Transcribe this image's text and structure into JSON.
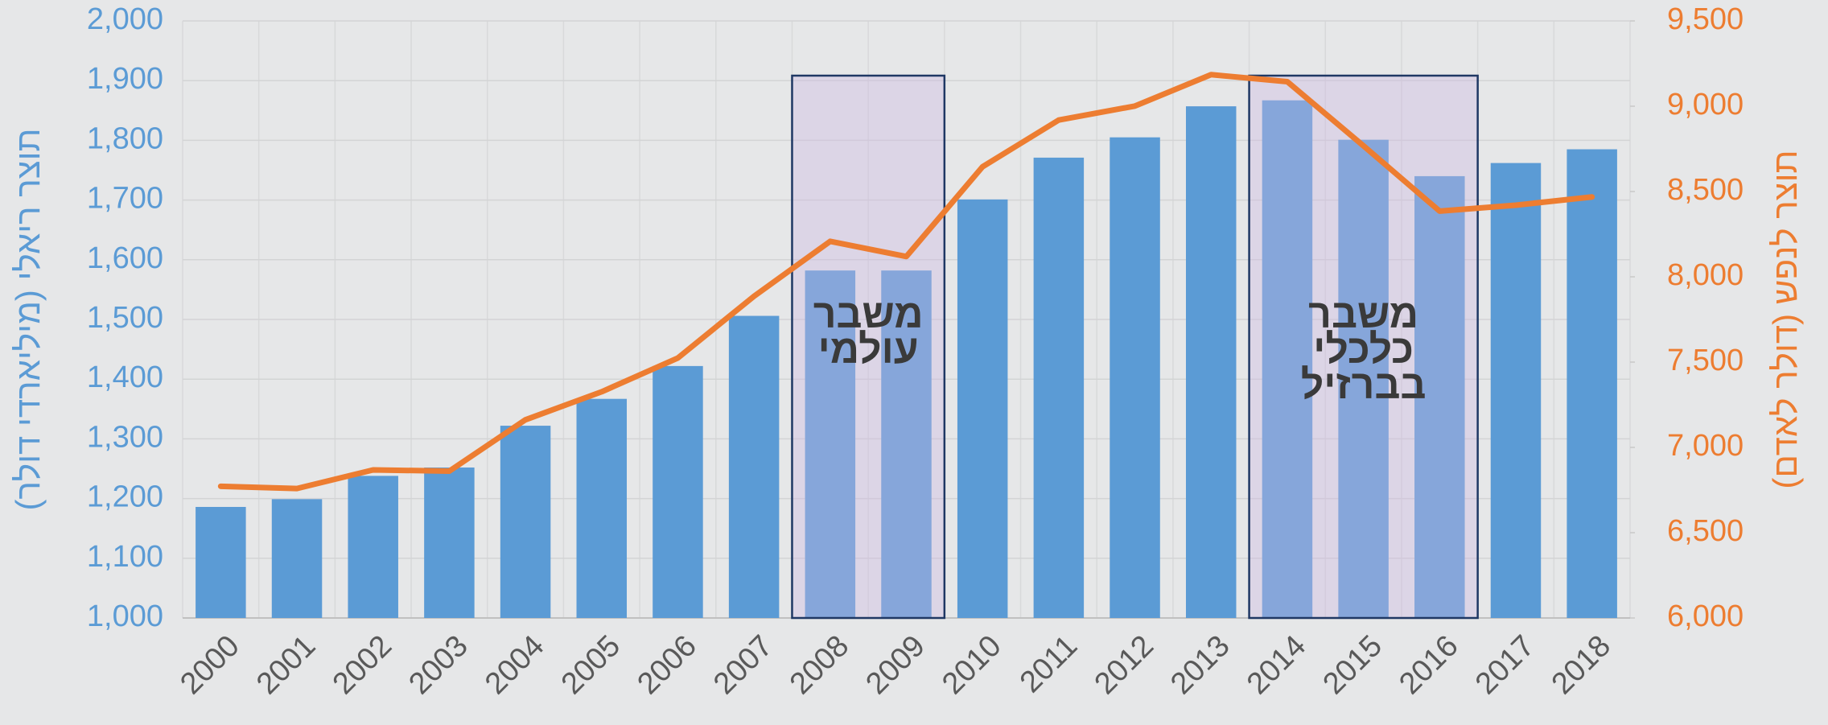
{
  "chart_data": {
    "type": "bar",
    "categories": [
      "2000",
      "2001",
      "2002",
      "2003",
      "2004",
      "2005",
      "2006",
      "2007",
      "2008",
      "2009",
      "2010",
      "2011",
      "2012",
      "2013",
      "2014",
      "2015",
      "2016",
      "2017",
      "2018"
    ],
    "series": [
      {
        "type": "bar",
        "color": "#5b9bd5",
        "values": [
          1186,
          1199,
          1238,
          1252,
          1322,
          1367,
          1422,
          1506,
          1582,
          1582,
          1701,
          1771,
          1805,
          1857,
          1867,
          1801,
          1740,
          1762,
          1785
        ]
      },
      {
        "type": "line",
        "color": "#ed7d31",
        "axis": "y2",
        "values": [
          6772,
          6759,
          6868,
          6861,
          7162,
          7326,
          7524,
          7886,
          8208,
          8119,
          8645,
          8919,
          9001,
          9185,
          9144,
          8768,
          8385,
          8420,
          8468
        ]
      }
    ],
    "ylabel": "תוצר ריאלי (מיליארדי דולר)",
    "y2label": "תוצר לנפש (דולר לאדם)",
    "ylim": [
      1000,
      2000
    ],
    "yticks": [
      {
        "value": 1000,
        "label": "1,000"
      },
      {
        "value": 1100,
        "label": "1,100"
      },
      {
        "value": 1200,
        "label": "1,200"
      },
      {
        "value": 1300,
        "label": "1,300"
      },
      {
        "value": 1400,
        "label": "1,400"
      },
      {
        "value": 1500,
        "label": "1,500"
      },
      {
        "value": 1600,
        "label": "1,600"
      },
      {
        "value": 1700,
        "label": "1,700"
      },
      {
        "value": 1800,
        "label": "1,800"
      },
      {
        "value": 1900,
        "label": "1,900"
      },
      {
        "value": 2000,
        "label": "2,000"
      }
    ],
    "y2lim": [
      6000,
      9500
    ],
    "y2ticks": [
      {
        "value": 6000,
        "label": "6,000"
      },
      {
        "value": 6500,
        "label": "6,500"
      },
      {
        "value": 7000,
        "label": "7,000"
      },
      {
        "value": 7500,
        "label": "7,500"
      },
      {
        "value": 8000,
        "label": "8,000"
      },
      {
        "value": 8500,
        "label": "8,500"
      },
      {
        "value": 9000,
        "label": "9,000"
      },
      {
        "value": 9500,
        "label": "9,500"
      }
    ],
    "grid": true,
    "annotations": [
      {
        "lines": [
          "משבר",
          "עולמי"
        ]
      },
      {
        "lines": [
          "משבר",
          "כלכלי",
          "בברזיל"
        ]
      }
    ]
  }
}
